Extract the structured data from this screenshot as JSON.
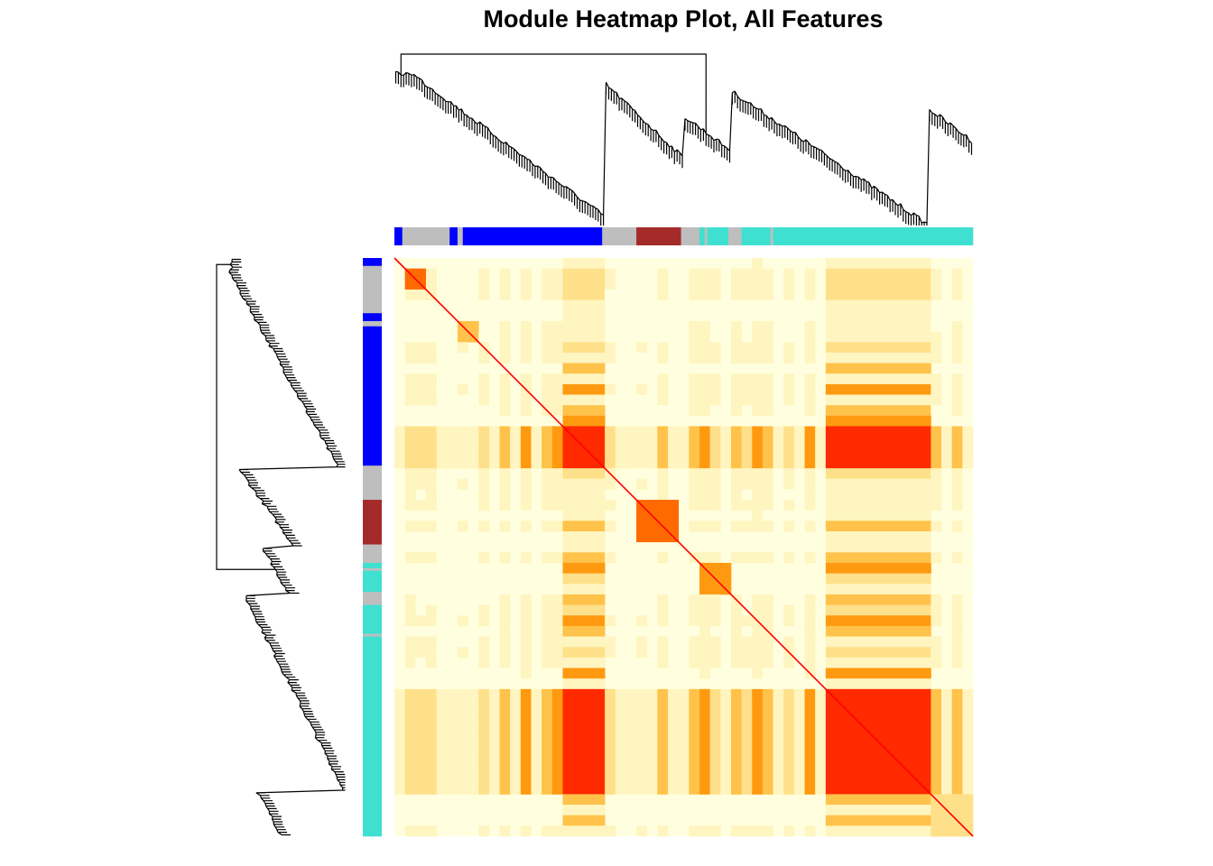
{
  "title": "Module Heatmap Plot, All Features",
  "chart_data": {
    "type": "heatmap",
    "title": "Module Heatmap Plot, All Features",
    "xlabel": "",
    "ylabel": "",
    "n_features": 220,
    "module_colors": {
      "grey": "#BEBEBE",
      "blue": "#0000FF",
      "brown": "#A52A2A",
      "turquoise": "#40E0D0"
    },
    "module_order_top": [
      {
        "module": "blue",
        "size": 3
      },
      {
        "module": "grey",
        "size": 18
      },
      {
        "module": "blue",
        "size": 3
      },
      {
        "module": "grey",
        "size": 2
      },
      {
        "module": "blue",
        "size": 53
      },
      {
        "module": "grey",
        "size": 13
      },
      {
        "module": "brown",
        "size": 17
      },
      {
        "module": "grey",
        "size": 7
      },
      {
        "module": "turquoise",
        "size": 2
      },
      {
        "module": "grey",
        "size": 1
      },
      {
        "module": "turquoise",
        "size": 8
      },
      {
        "module": "grey",
        "size": 5
      },
      {
        "module": "turquoise",
        "size": 11
      },
      {
        "module": "grey",
        "size": 1
      },
      {
        "module": "turquoise",
        "size": 76
      }
    ],
    "blocks": [
      {
        "module": "blue",
        "range": [
          0.01,
          0.055
        ],
        "intensity": 0.85
      },
      {
        "module": "blue",
        "range": [
          0.1,
          0.14
        ],
        "intensity": 0.55
      },
      {
        "module": "blue",
        "range": [
          0.28,
          0.36
        ],
        "intensity": 0.95
      },
      {
        "module": "brown",
        "range": [
          0.42,
          0.495
        ],
        "intensity": 0.8
      },
      {
        "module": "turquoise",
        "range": [
          0.52,
          0.575
        ],
        "intensity": 0.7
      },
      {
        "module": "turquoise",
        "range": [
          0.75,
          0.915
        ],
        "intensity": 0.95
      },
      {
        "module": "turquoise",
        "range": [
          0.915,
          1.0
        ],
        "intensity": 0.35
      }
    ],
    "colorscale": [
      "#FFFFE0",
      "#FFF5C0",
      "#FFE08A",
      "#FFC24A",
      "#FF9A10",
      "#FF6A00",
      "#FF2A00"
    ],
    "diagonal_color": "#FF0000",
    "dendrograms": {
      "top": true,
      "left": true
    },
    "legend": "none",
    "grid": false
  }
}
